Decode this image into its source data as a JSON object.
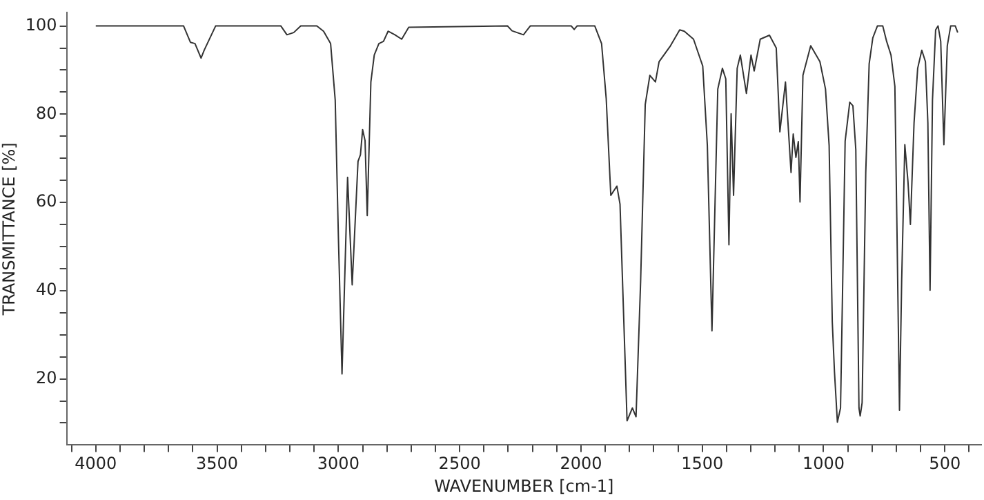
{
  "chart_data": {
    "type": "line",
    "xlabel": "WAVENUMBER [cm-1]",
    "ylabel": "TRANSMITTANCE [%]",
    "xlim": [
      4120,
      350
    ],
    "ylim": [
      5,
      103
    ],
    "xticks": [
      {
        "value": 4100,
        "label": null
      },
      4000,
      {
        "value": 3900,
        "label": null
      },
      {
        "value": 3800,
        "label": null
      },
      {
        "value": 3700,
        "label": null
      },
      {
        "value": 3600,
        "label": null
      },
      3500,
      {
        "value": 3400,
        "label": null
      },
      {
        "value": 3300,
        "label": null
      },
      {
        "value": 3200,
        "label": null
      },
      {
        "value": 3100,
        "label": null
      },
      3000,
      {
        "value": 2900,
        "label": null
      },
      {
        "value": 2800,
        "label": null
      },
      {
        "value": 2700,
        "label": null
      },
      {
        "value": 2600,
        "label": null
      },
      2500,
      {
        "value": 2400,
        "label": null
      },
      {
        "value": 2300,
        "label": null
      },
      {
        "value": 2200,
        "label": null
      },
      {
        "value": 2100,
        "label": null
      },
      2000,
      {
        "value": 1900,
        "label": null
      },
      {
        "value": 1800,
        "label": null
      },
      {
        "value": 1700,
        "label": null
      },
      {
        "value": 1600,
        "label": null
      },
      1500,
      {
        "value": 1400,
        "label": null
      },
      {
        "value": 1300,
        "label": null
      },
      {
        "value": 1200,
        "label": null
      },
      {
        "value": 1100,
        "label": null
      },
      1000,
      {
        "value": 900,
        "label": null
      },
      {
        "value": 800,
        "label": null
      },
      {
        "value": 700,
        "label": null
      },
      {
        "value": 600,
        "label": null
      },
      500,
      {
        "value": 400,
        "label": null
      }
    ],
    "yticks": [
      {
        "value": 10,
        "label": null
      },
      {
        "value": 15,
        "label": null
      },
      20,
      {
        "value": 25,
        "label": null
      },
      {
        "value": 30,
        "label": null
      },
      {
        "value": 35,
        "label": null
      },
      40,
      {
        "value": 45,
        "label": null
      },
      {
        "value": 50,
        "label": null
      },
      {
        "value": 55,
        "label": null
      },
      60,
      {
        "value": 65,
        "label": null
      },
      {
        "value": 70,
        "label": null
      },
      {
        "value": 75,
        "label": null
      },
      80,
      {
        "value": 85,
        "label": null
      },
      {
        "value": 90,
        "label": null
      },
      {
        "value": 95,
        "label": null
      },
      100
    ],
    "grid": false,
    "legend": false,
    "marker": "none",
    "line_style": "solid",
    "series": [
      {
        "color": "#333333",
        "x": [
          4000,
          3638,
          3610,
          3591,
          3566,
          3553,
          3506,
          3237,
          3212,
          3184,
          3155,
          3089,
          3061,
          3032,
          3013,
          3000,
          2985,
          2962,
          2943,
          2919,
          2909,
          2900,
          2890,
          2881,
          2866,
          2852,
          2833,
          2814,
          2795,
          2767,
          2739,
          2710,
          2303,
          2284,
          2237,
          2209,
          2040,
          2028,
          2016,
          1943,
          1915,
          1896,
          1877,
          1852,
          1839,
          1810,
          1788,
          1773,
          1754,
          1735,
          1716,
          1693,
          1678,
          1631,
          1593,
          1574,
          1536,
          1498,
          1479,
          1460,
          1436,
          1417,
          1403,
          1390,
          1381,
          1371,
          1356,
          1343,
          1318,
          1299,
          1286,
          1261,
          1223,
          1195,
          1180,
          1157,
          1134,
          1125,
          1114,
          1104,
          1097,
          1085,
          1053,
          1015,
          992,
          977,
          964,
          955,
          943,
          930,
          911,
          892,
          879,
          867,
          854,
          849,
          841,
          826,
          812,
          797,
          778,
          756,
          740,
          722,
          706,
          697,
          687,
          678,
          665,
          652,
          642,
          627,
          612,
          595,
          580,
          570,
          561,
          551,
          538,
          528,
          517,
          504,
          490,
          476,
          457,
          447
        ],
        "values": [
          100,
          100,
          96.3,
          96,
          92.7,
          94.5,
          100,
          100,
          98,
          98.5,
          100,
          100,
          98.8,
          96,
          83.2,
          52.4,
          21.1,
          65.7,
          41.3,
          69.3,
          70.8,
          76.5,
          74,
          57,
          87.3,
          93.4,
          96,
          96.5,
          98.8,
          98,
          97,
          99.7,
          100,
          98.9,
          98,
          100,
          100,
          99.2,
          100,
          100,
          96,
          83.6,
          61.6,
          63.7,
          59.6,
          10.5,
          13.4,
          11.4,
          42.2,
          82.2,
          88.8,
          87.3,
          91.9,
          95.5,
          99.1,
          98.8,
          97,
          90.9,
          72.9,
          30.9,
          85.7,
          90.4,
          88,
          50.4,
          80.1,
          61.6,
          90.4,
          93.4,
          84.7,
          93.4,
          89.8,
          97,
          97.9,
          95,
          76,
          87.3,
          66.8,
          75.5,
          70.2,
          73.8,
          60.1,
          88.8,
          95.5,
          91.9,
          85.7,
          72.9,
          32.9,
          21.6,
          10.2,
          13.4,
          73.9,
          82.7,
          81.9,
          71.9,
          13.4,
          11.6,
          14.6,
          66.8,
          91.4,
          97.3,
          100,
          100,
          96.5,
          93.4,
          86.3,
          52.4,
          12.9,
          42.2,
          73.1,
          64.7,
          55,
          78,
          90.4,
          94.5,
          91.9,
          78,
          40.1,
          83.2,
          99.1,
          100,
          96.5,
          73.1,
          95.5,
          100,
          100,
          98.5
        ]
      }
    ]
  }
}
